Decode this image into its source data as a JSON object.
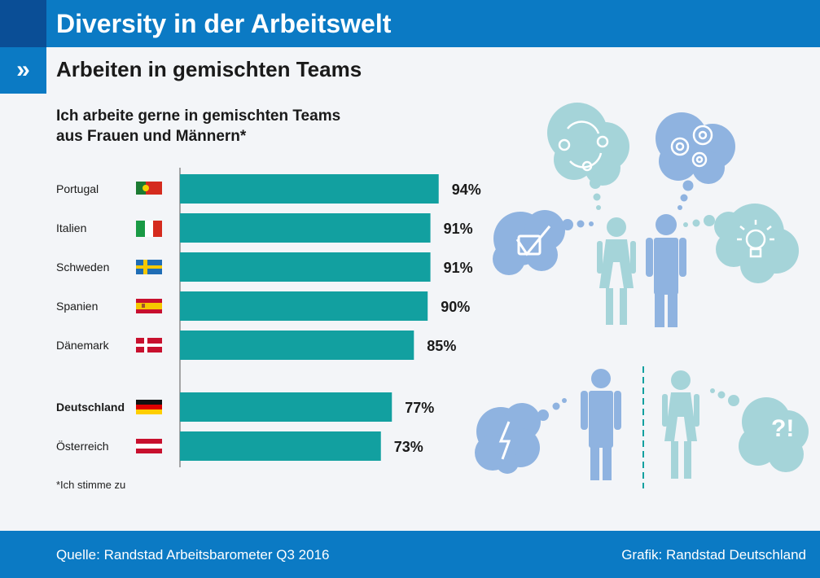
{
  "header": {
    "title": "Diversity in der Arbeitswelt",
    "chevron": "»"
  },
  "subtitle": "Arbeiten in gemischten Teams",
  "question": {
    "line1": "Ich arbeite gerne in gemischten Teams",
    "line2": "aus Frauen und Männern*"
  },
  "footnote": "*Ich stimme zu",
  "footer": {
    "source": "Quelle: Randstad Arbeitsbarometer Q3 2016",
    "credit": "Grafik: Randstad Deutschland"
  },
  "colors": {
    "bar": "#12a0a0",
    "header": "#0b7ac4",
    "header_dark": "#0a4e96",
    "background": "#f3f5f8",
    "person_blue": "#8fb3e0",
    "person_teal": "#9fd0d6",
    "cloud_blue": "#8fb3e0",
    "cloud_teal": "#a5d4d9"
  },
  "icons": [
    "cycle-icon",
    "gears-icon",
    "checkmark-icon",
    "lightbulb-icon",
    "lightning-icon",
    "question-exclamation-icon",
    "woman-icon",
    "man-icon",
    "flag-icon"
  ],
  "chart_data": {
    "type": "bar",
    "orientation": "horizontal",
    "categories": [
      "Portugal",
      "Italien",
      "Schweden",
      "Spanien",
      "Dänemark",
      "Deutschland",
      "Österreich"
    ],
    "values": [
      94,
      91,
      91,
      90,
      85,
      77,
      73
    ],
    "value_labels": [
      "94%",
      "91%",
      "91%",
      "90%",
      "85%",
      "77%",
      "73%"
    ],
    "highlighted": "Deutschland",
    "flags": [
      "portugal-flag-icon",
      "italy-flag-icon",
      "sweden-flag-icon",
      "spain-flag-icon",
      "denmark-flag-icon",
      "germany-flag-icon",
      "austria-flag-icon"
    ],
    "xlim": [
      0,
      100
    ],
    "grid": false
  }
}
